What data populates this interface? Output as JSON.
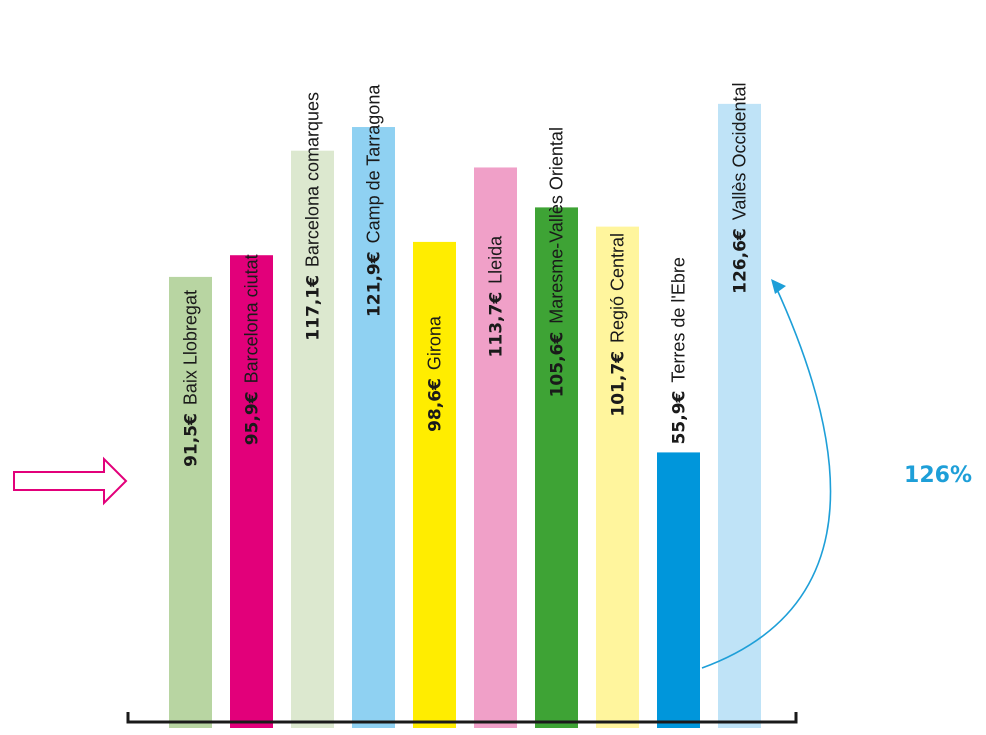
{
  "chart_data": {
    "type": "bar",
    "categories": [
      "Baix Llobregat",
      "Barcelona ciutat",
      "Barcelona comarques",
      "Camp de Tarragona",
      "Girona",
      "Lleida",
      "Maresme-Vallès Oriental",
      "Regió Central",
      "Terres de l'Ebre",
      "Vallès Occidental"
    ],
    "value_labels": [
      "91,5€",
      "95,9€",
      "117,1€",
      "121,9€",
      "98,6€",
      "113,7€",
      "105,6€",
      "101,7€",
      "55,9€",
      "126,6€"
    ],
    "values": [
      91.5,
      95.9,
      117.1,
      121.9,
      98.6,
      113.7,
      105.6,
      101.7,
      55.9,
      126.6
    ],
    "colors": [
      "#b8d5a2",
      "#e2007a",
      "#dce8cf",
      "#8fd1f2",
      "#ffed00",
      "#f0a0c8",
      "#3ea335",
      "#fff59d",
      "#0096db",
      "#bfe3f7"
    ],
    "ylim": [
      0,
      130
    ],
    "annotation": {
      "text": "126%",
      "from": "Terres de l'Ebre",
      "to": "Vallès Occidental",
      "color": "#1e9fd8"
    },
    "arrow_color": "#e2007a"
  }
}
